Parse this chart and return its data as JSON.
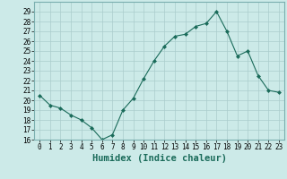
{
  "x": [
    0,
    1,
    2,
    3,
    4,
    5,
    6,
    7,
    8,
    9,
    10,
    11,
    12,
    13,
    14,
    15,
    16,
    17,
    18,
    19,
    20,
    21,
    22,
    23
  ],
  "y": [
    20.5,
    19.5,
    19.2,
    18.5,
    18.0,
    17.2,
    16.0,
    16.5,
    19.0,
    20.2,
    22.2,
    24.0,
    25.5,
    26.5,
    26.7,
    27.5,
    27.8,
    29.0,
    27.0,
    24.5,
    25.0,
    22.5,
    21.0,
    20.8
  ],
  "line_color": "#1a6b5a",
  "marker": "D",
  "marker_size": 2.0,
  "bg_color": "#cceae8",
  "grid_color": "#aacccc",
  "xlabel": "Humidex (Indice chaleur)",
  "ylim": [
    16,
    30
  ],
  "xlim": [
    -0.5,
    23.5
  ],
  "yticks": [
    16,
    17,
    18,
    19,
    20,
    21,
    22,
    23,
    24,
    25,
    26,
    27,
    28,
    29
  ],
  "xticks": [
    0,
    1,
    2,
    3,
    4,
    5,
    6,
    7,
    8,
    9,
    10,
    11,
    12,
    13,
    14,
    15,
    16,
    17,
    18,
    19,
    20,
    21,
    22,
    23
  ],
  "xtick_labels": [
    "0",
    "1",
    "2",
    "3",
    "4",
    "5",
    "6",
    "7",
    "8",
    "9",
    "10",
    "11",
    "12",
    "13",
    "14",
    "15",
    "16",
    "17",
    "18",
    "19",
    "20",
    "21",
    "22",
    "23"
  ],
  "tick_fontsize": 5.5,
  "xlabel_fontsize": 7.5
}
